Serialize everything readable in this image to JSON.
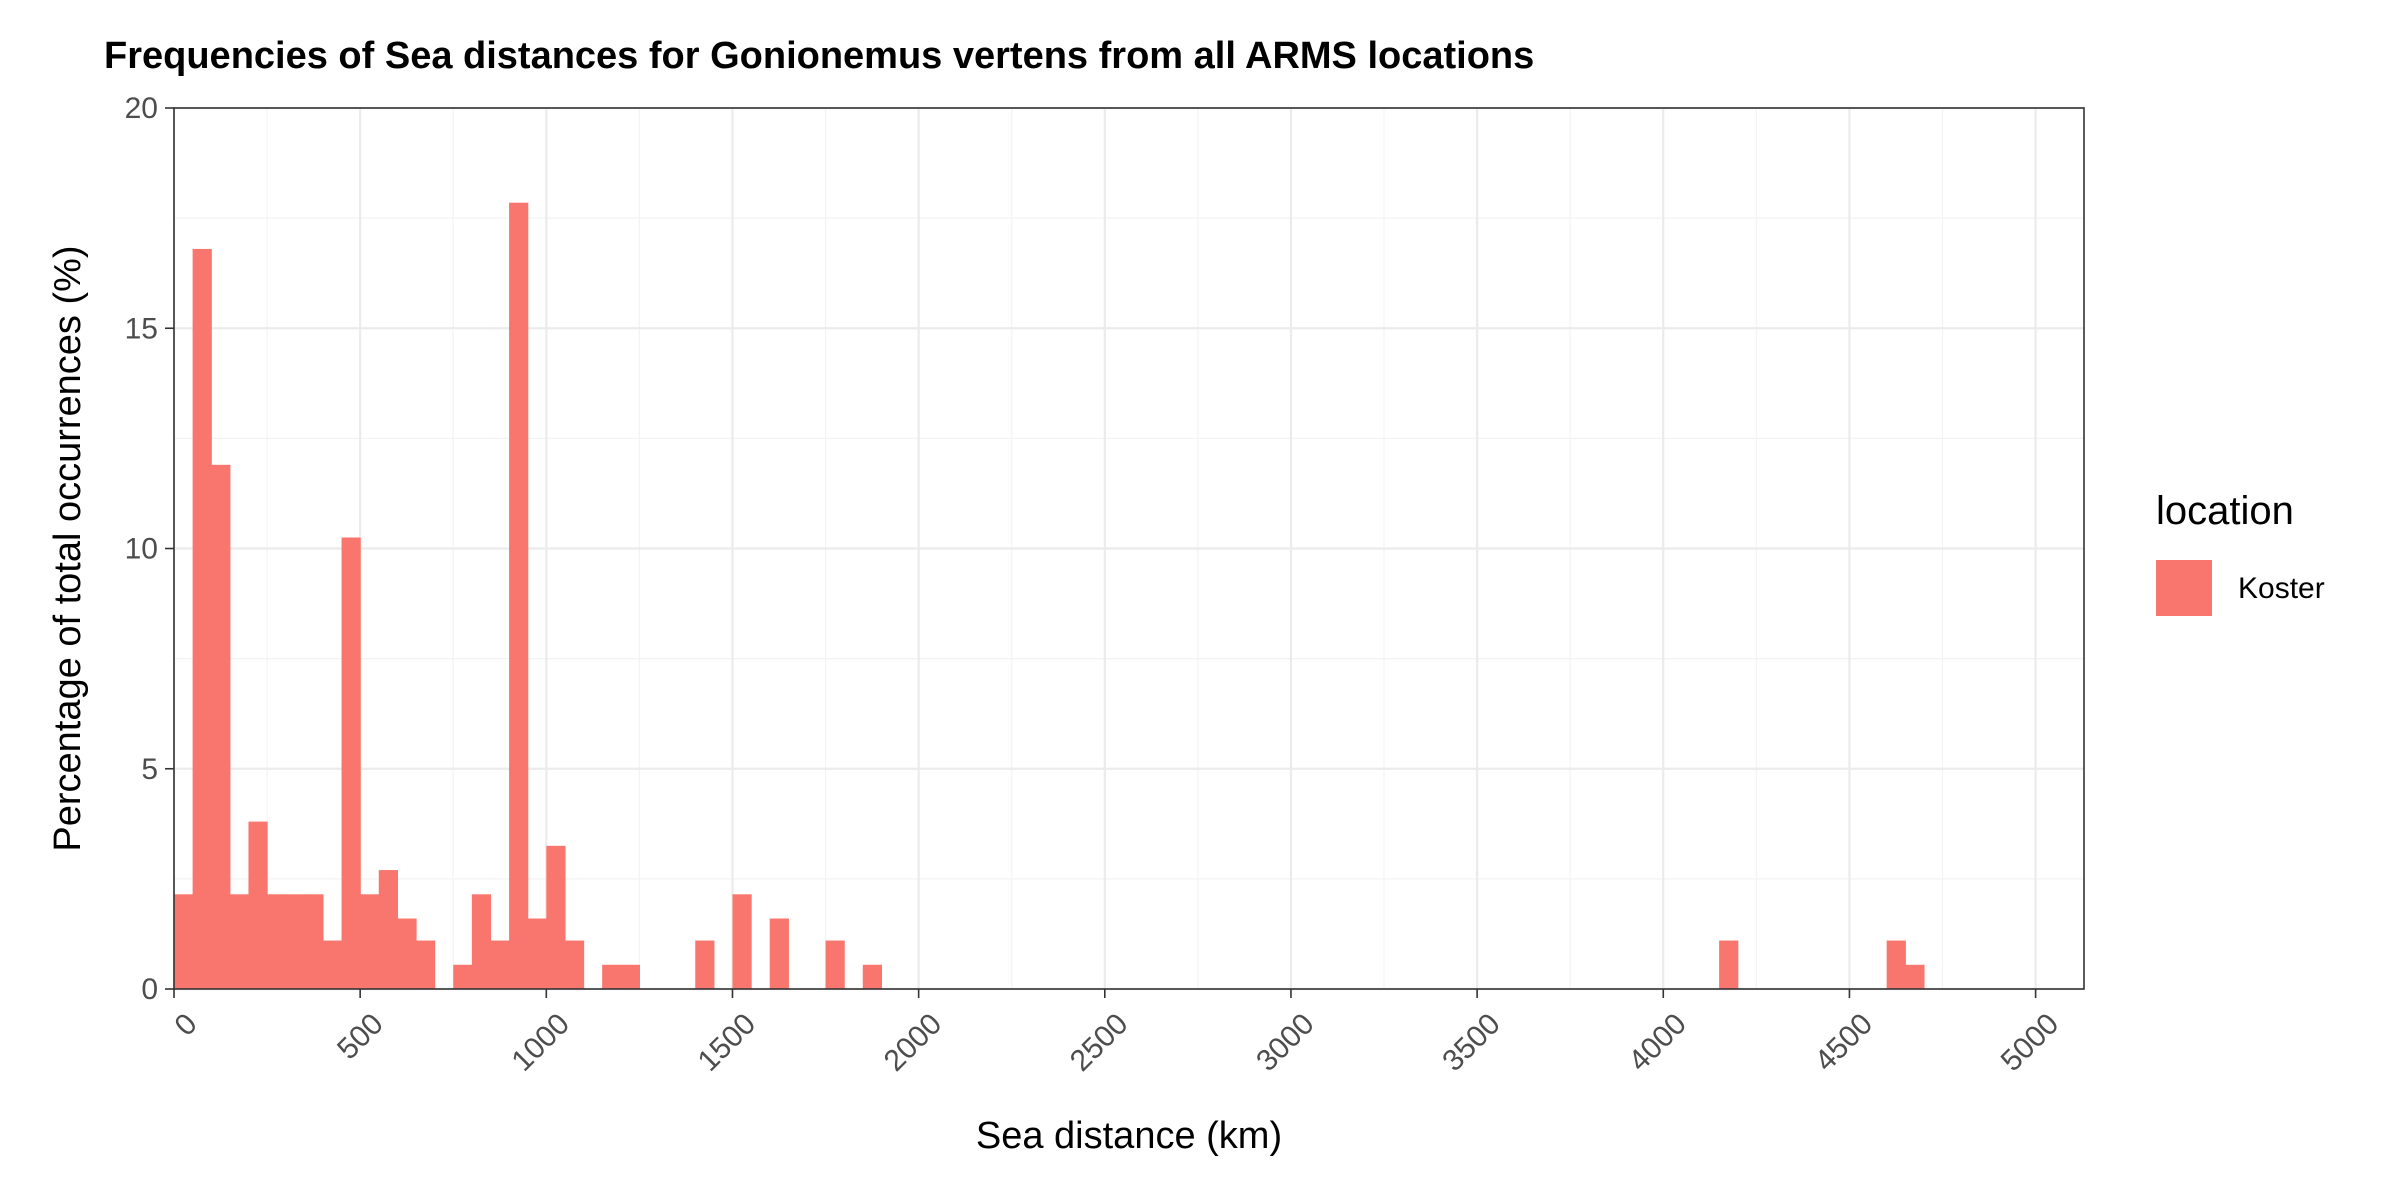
{
  "chart_data": {
    "type": "bar",
    "title": "Frequencies of Sea distances for Gonionemus vertens from all ARMS locations",
    "xlabel": "Sea distance (km)",
    "ylabel": "Percentage of total occurrences (%)",
    "xlim": [
      0,
      5130
    ],
    "ylim": [
      0,
      20
    ],
    "x_ticks": [
      0,
      500,
      1000,
      1500,
      2000,
      2500,
      3000,
      3500,
      4000,
      4500,
      5000
    ],
    "y_ticks": [
      0,
      5,
      10,
      15,
      20
    ],
    "bin_width": 50,
    "legend": {
      "title": "location",
      "entries": [
        "Koster"
      ],
      "position": "right"
    },
    "grid": true,
    "series": [
      {
        "name": "Koster",
        "color": "#F8766D",
        "bins": [
          {
            "x": 0,
            "value": 2.15
          },
          {
            "x": 50,
            "value": 16.8
          },
          {
            "x": 100,
            "value": 11.9
          },
          {
            "x": 150,
            "value": 2.15
          },
          {
            "x": 200,
            "value": 3.8
          },
          {
            "x": 250,
            "value": 2.15
          },
          {
            "x": 300,
            "value": 2.15
          },
          {
            "x": 350,
            "value": 2.15
          },
          {
            "x": 400,
            "value": 1.1
          },
          {
            "x": 450,
            "value": 10.25
          },
          {
            "x": 500,
            "value": 2.15
          },
          {
            "x": 550,
            "value": 2.7
          },
          {
            "x": 600,
            "value": 1.6
          },
          {
            "x": 650,
            "value": 1.1
          },
          {
            "x": 750,
            "value": 0.55
          },
          {
            "x": 800,
            "value": 2.15
          },
          {
            "x": 850,
            "value": 1.1
          },
          {
            "x": 900,
            "value": 17.85
          },
          {
            "x": 950,
            "value": 1.6
          },
          {
            "x": 1000,
            "value": 3.25
          },
          {
            "x": 1050,
            "value": 1.1
          },
          {
            "x": 1150,
            "value": 0.55
          },
          {
            "x": 1200,
            "value": 0.55
          },
          {
            "x": 1400,
            "value": 1.1
          },
          {
            "x": 1500,
            "value": 2.15
          },
          {
            "x": 1600,
            "value": 1.6
          },
          {
            "x": 1750,
            "value": 1.1
          },
          {
            "x": 1850,
            "value": 0.55
          },
          {
            "x": 4150,
            "value": 1.1
          },
          {
            "x": 4600,
            "value": 1.1
          },
          {
            "x": 4650,
            "value": 0.55
          }
        ]
      }
    ]
  }
}
